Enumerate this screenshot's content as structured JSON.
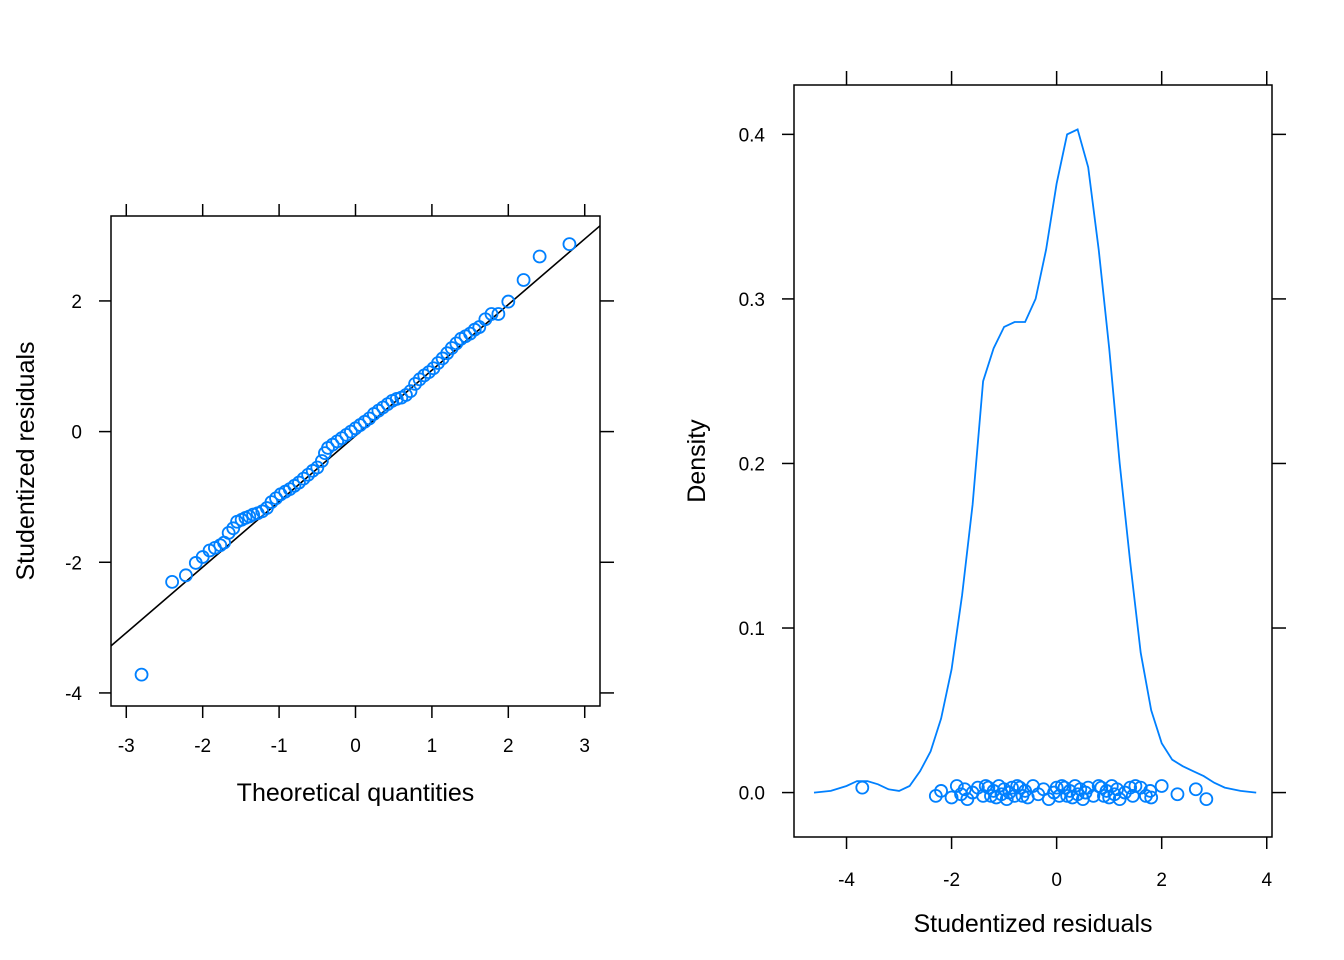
{
  "colors": {
    "series": "#0080FF",
    "reference_line": "#000000",
    "frame": "#000000",
    "background": "#FFFFFF"
  },
  "chart_data": [
    {
      "type": "scatter",
      "kind": "normal Q-Q plot",
      "title": "",
      "xlabel": "Theoretical quantities",
      "ylabel": "Studentized residuals",
      "xlim": [
        -3.2,
        3.2
      ],
      "ylim": [
        -4.2,
        3.3
      ],
      "x_ticks": [
        -3,
        -2,
        -1,
        0,
        1,
        2,
        3
      ],
      "y_ticks": [
        -4,
        -2,
        0,
        2
      ],
      "x_tick_labels": [
        "-3",
        "-2",
        "-1",
        "0",
        "1",
        "2",
        "3"
      ],
      "y_tick_labels": [
        "-4",
        "-2",
        "0",
        "2"
      ],
      "reference_line": {
        "from": [
          -3.2,
          -3.28
        ],
        "to": [
          3.2,
          3.15
        ]
      },
      "series": [
        {
          "x": [
            -2.8,
            -2.4,
            -2.22,
            -2.09,
            -2.0,
            -1.91,
            -1.84,
            -1.77,
            -1.72,
            -1.66,
            -1.6,
            -1.55,
            -1.49,
            -1.44,
            -1.39,
            -1.34,
            -1.28,
            -1.22,
            -1.16,
            -1.1,
            -1.04,
            -0.98,
            -0.92,
            -0.86,
            -0.8,
            -0.74,
            -0.68,
            -0.62,
            -0.56,
            -0.5,
            -0.44,
            -0.4,
            -0.36,
            -0.3,
            -0.24,
            -0.18,
            -0.12,
            -0.06,
            0.0,
            0.06,
            0.12,
            0.18,
            0.24,
            0.3,
            0.36,
            0.42,
            0.48,
            0.54,
            0.6,
            0.66,
            0.72,
            0.78,
            0.84,
            0.9,
            0.96,
            1.02,
            1.08,
            1.14,
            1.2,
            1.26,
            1.32,
            1.38,
            1.44,
            1.5,
            1.56,
            1.62,
            1.7,
            1.78,
            1.87,
            2.0,
            2.2,
            2.41,
            2.8
          ],
          "y": [
            -3.72,
            -2.3,
            -2.2,
            -2.01,
            -1.92,
            -1.82,
            -1.78,
            -1.74,
            -1.7,
            -1.55,
            -1.48,
            -1.38,
            -1.35,
            -1.32,
            -1.3,
            -1.27,
            -1.25,
            -1.22,
            -1.17,
            -1.08,
            -1.02,
            -0.96,
            -0.92,
            -0.88,
            -0.83,
            -0.78,
            -0.72,
            -0.66,
            -0.6,
            -0.55,
            -0.45,
            -0.33,
            -0.25,
            -0.2,
            -0.15,
            -0.1,
            -0.05,
            0.0,
            0.05,
            0.1,
            0.15,
            0.2,
            0.27,
            0.32,
            0.37,
            0.42,
            0.47,
            0.5,
            0.52,
            0.56,
            0.62,
            0.73,
            0.8,
            0.86,
            0.91,
            0.97,
            1.05,
            1.12,
            1.2,
            1.28,
            1.35,
            1.42,
            1.46,
            1.5,
            1.56,
            1.6,
            1.72,
            1.8,
            1.8,
            1.99,
            2.32,
            2.68,
            2.87
          ]
        }
      ]
    },
    {
      "type": "line",
      "kind": "kernel density with rug points",
      "title": "",
      "xlabel": "Studentized residuals",
      "ylabel": "Density",
      "xlim": [
        -5.0,
        4.1
      ],
      "ylim": [
        -0.027,
        0.43
      ],
      "x_ticks": [
        -4,
        -2,
        0,
        2,
        4
      ],
      "y_ticks": [
        0.0,
        0.1,
        0.2,
        0.3,
        0.4
      ],
      "x_tick_labels": [
        "-4",
        "-2",
        "0",
        "2",
        "4"
      ],
      "y_tick_labels": [
        "0.0",
        "0.1",
        "0.2",
        "0.3",
        "0.4"
      ],
      "series": [
        {
          "x": [
            -4.62,
            -4.3,
            -4.0,
            -3.8,
            -3.6,
            -3.4,
            -3.2,
            -3.0,
            -2.8,
            -2.6,
            -2.4,
            -2.2,
            -2.0,
            -1.8,
            -1.6,
            -1.4,
            -1.2,
            -1.0,
            -0.8,
            -0.6,
            -0.4,
            -0.2,
            0.0,
            0.2,
            0.4,
            0.6,
            0.8,
            1.0,
            1.2,
            1.4,
            1.6,
            1.8,
            2.0,
            2.2,
            2.4,
            2.6,
            2.8,
            3.0,
            3.2,
            3.5,
            3.8
          ],
          "y": [
            0.0,
            0.001,
            0.004,
            0.007,
            0.007,
            0.005,
            0.002,
            0.001,
            0.004,
            0.013,
            0.025,
            0.045,
            0.075,
            0.12,
            0.175,
            0.25,
            0.27,
            0.283,
            0.286,
            0.286,
            0.3,
            0.33,
            0.37,
            0.4,
            0.403,
            0.38,
            0.33,
            0.27,
            0.2,
            0.14,
            0.085,
            0.05,
            0.03,
            0.02,
            0.016,
            0.013,
            0.01,
            0.006,
            0.003,
            0.001,
            0.0
          ]
        }
      ],
      "rug_points": [
        -3.7,
        -2.3,
        -2.2,
        -2.0,
        -1.9,
        -1.82,
        -1.75,
        -1.7,
        -1.6,
        -1.5,
        -1.4,
        -1.35,
        -1.3,
        -1.25,
        -1.2,
        -1.15,
        -1.1,
        -1.05,
        -1.0,
        -0.95,
        -0.9,
        -0.85,
        -0.8,
        -0.75,
        -0.7,
        -0.65,
        -0.6,
        -0.55,
        -0.45,
        -0.35,
        -0.25,
        -0.15,
        -0.05,
        0.0,
        0.05,
        0.1,
        0.15,
        0.2,
        0.25,
        0.3,
        0.35,
        0.4,
        0.45,
        0.5,
        0.55,
        0.6,
        0.7,
        0.8,
        0.85,
        0.9,
        0.95,
        1.0,
        1.05,
        1.1,
        1.15,
        1.2,
        1.3,
        1.4,
        1.45,
        1.5,
        1.6,
        1.7,
        1.78,
        1.8,
        2.0,
        2.3,
        2.65,
        2.85
      ]
    }
  ]
}
